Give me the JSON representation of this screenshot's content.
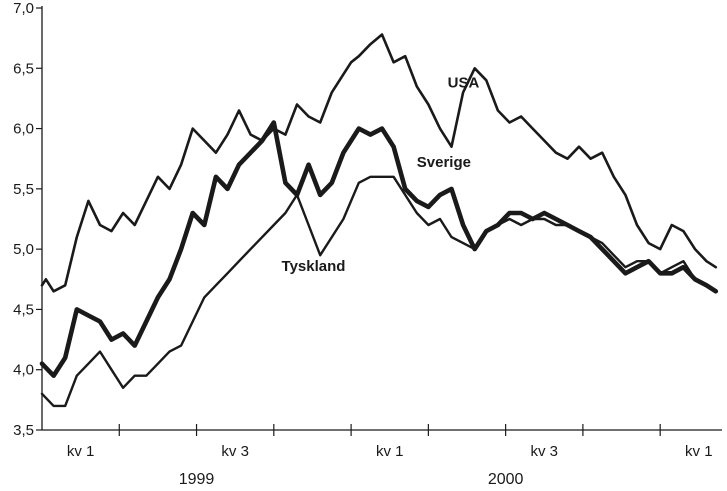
{
  "chart_data": {
    "type": "line",
    "title": "",
    "xlabel": "",
    "ylabel": "",
    "ylim": [
      3.5,
      7.0
    ],
    "y_ticks": [
      3.5,
      4.0,
      4.5,
      5.0,
      5.5,
      6.0,
      6.5,
      7.0
    ],
    "y_tick_labels": [
      "3,5",
      "4,0",
      "4,5",
      "5,0",
      "5,5",
      "6,0",
      "6,5",
      "7,0"
    ],
    "quarter_labels": [
      "kv 1",
      "kv 3",
      "kv 1",
      "kv 3",
      "kv 1"
    ],
    "year_labels": [
      "1999",
      "2000"
    ],
    "grid": false,
    "legend": "inline labels next to lines",
    "x_note": "x = quarter index, 0 = start of 1999 Q1",
    "series": [
      {
        "name": "USA",
        "x": [
          0,
          0.05,
          0.15,
          0.3,
          0.45,
          0.6,
          0.75,
          0.9,
          1.05,
          1.2,
          1.35,
          1.5,
          1.65,
          1.8,
          1.95,
          2.1,
          2.25,
          2.4,
          2.55,
          2.7,
          2.85,
          3.0,
          3.15,
          3.3,
          3.45,
          3.6,
          3.75,
          3.9,
          4.0,
          4.1,
          4.25,
          4.4,
          4.55,
          4.7,
          4.85,
          5.0,
          5.15,
          5.3,
          5.45,
          5.6,
          5.75,
          5.9,
          6.05,
          6.2,
          6.35,
          6.5,
          6.65,
          6.8,
          6.95,
          7.1,
          7.25,
          7.4,
          7.55,
          7.7,
          7.85,
          8.0,
          8.15,
          8.3,
          8.45,
          8.6,
          8.72
        ],
        "values": [
          4.7,
          4.75,
          4.65,
          4.7,
          5.1,
          5.4,
          5.2,
          5.15,
          5.3,
          5.2,
          5.4,
          5.6,
          5.5,
          5.7,
          6.0,
          5.9,
          5.8,
          5.95,
          6.15,
          5.95,
          5.9,
          6.0,
          5.95,
          6.2,
          6.1,
          6.05,
          6.3,
          6.45,
          6.55,
          6.6,
          6.7,
          6.78,
          6.55,
          6.6,
          6.35,
          6.2,
          6.0,
          5.85,
          6.3,
          6.5,
          6.4,
          6.15,
          6.05,
          6.1,
          6.0,
          5.9,
          5.8,
          5.75,
          5.85,
          5.75,
          5.8,
          5.6,
          5.45,
          5.2,
          5.05,
          5.0,
          5.2,
          5.15,
          5.0,
          4.9,
          4.85
        ]
      },
      {
        "name": "Sverige",
        "x": [
          0,
          0.15,
          0.3,
          0.45,
          0.6,
          0.75,
          0.9,
          1.05,
          1.2,
          1.35,
          1.5,
          1.65,
          1.8,
          1.95,
          2.1,
          2.25,
          2.4,
          2.55,
          2.7,
          2.85,
          3.0,
          3.15,
          3.3,
          3.45,
          3.6,
          3.75,
          3.9,
          4.0,
          4.1,
          4.25,
          4.4,
          4.55,
          4.7,
          4.85,
          5.0,
          5.15,
          5.3,
          5.45,
          5.6,
          5.75,
          5.9,
          6.05,
          6.2,
          6.35,
          6.5,
          6.65,
          6.8,
          6.95,
          7.1,
          7.25,
          7.4,
          7.55,
          7.7,
          7.85,
          8.0,
          8.15,
          8.3,
          8.45,
          8.6,
          8.72
        ],
        "values": [
          4.05,
          3.95,
          4.1,
          4.5,
          4.45,
          4.4,
          4.25,
          4.3,
          4.2,
          4.4,
          4.6,
          4.75,
          5.0,
          5.3,
          5.2,
          5.6,
          5.5,
          5.7,
          5.8,
          5.9,
          6.05,
          5.55,
          5.45,
          5.7,
          5.45,
          5.55,
          5.8,
          5.9,
          6.0,
          5.95,
          6.0,
          5.85,
          5.5,
          5.4,
          5.35,
          5.45,
          5.5,
          5.2,
          5.0,
          5.15,
          5.2,
          5.3,
          5.3,
          5.25,
          5.3,
          5.25,
          5.2,
          5.15,
          5.1,
          5.0,
          4.9,
          4.8,
          4.85,
          4.9,
          4.8,
          4.8,
          4.85,
          4.75,
          4.7,
          4.65
        ]
      },
      {
        "name": "Tyskland",
        "x": [
          0,
          0.15,
          0.3,
          0.45,
          0.6,
          0.75,
          0.9,
          1.05,
          1.2,
          1.35,
          1.5,
          1.65,
          1.8,
          1.95,
          2.1,
          2.25,
          2.4,
          2.55,
          2.7,
          2.85,
          3.0,
          3.15,
          3.3,
          3.45,
          3.6,
          3.75,
          3.9,
          4.0,
          4.1,
          4.25,
          4.4,
          4.55,
          4.7,
          4.85,
          5.0,
          5.15,
          5.3,
          5.45,
          5.6,
          5.75,
          5.9,
          6.05,
          6.2,
          6.35,
          6.5,
          6.65,
          6.8,
          6.95,
          7.1,
          7.25,
          7.4,
          7.55,
          7.7,
          7.85,
          8.0,
          8.15,
          8.3,
          8.45,
          8.6,
          8.72
        ],
        "values": [
          3.8,
          3.7,
          3.7,
          3.95,
          4.05,
          4.15,
          4.0,
          3.85,
          3.95,
          3.95,
          4.05,
          4.15,
          4.2,
          4.4,
          4.6,
          4.7,
          4.8,
          4.9,
          5.0,
          5.1,
          5.2,
          5.3,
          5.45,
          5.2,
          4.95,
          5.1,
          5.25,
          5.4,
          5.55,
          5.6,
          5.6,
          5.6,
          5.45,
          5.3,
          5.2,
          5.25,
          5.1,
          5.05,
          5.0,
          5.15,
          5.2,
          5.25,
          5.2,
          5.25,
          5.25,
          5.2,
          5.2,
          5.15,
          5.1,
          5.05,
          4.95,
          4.85,
          4.9,
          4.9,
          4.8,
          4.85,
          4.9,
          4.75,
          4.7,
          4.65
        ]
      }
    ]
  }
}
